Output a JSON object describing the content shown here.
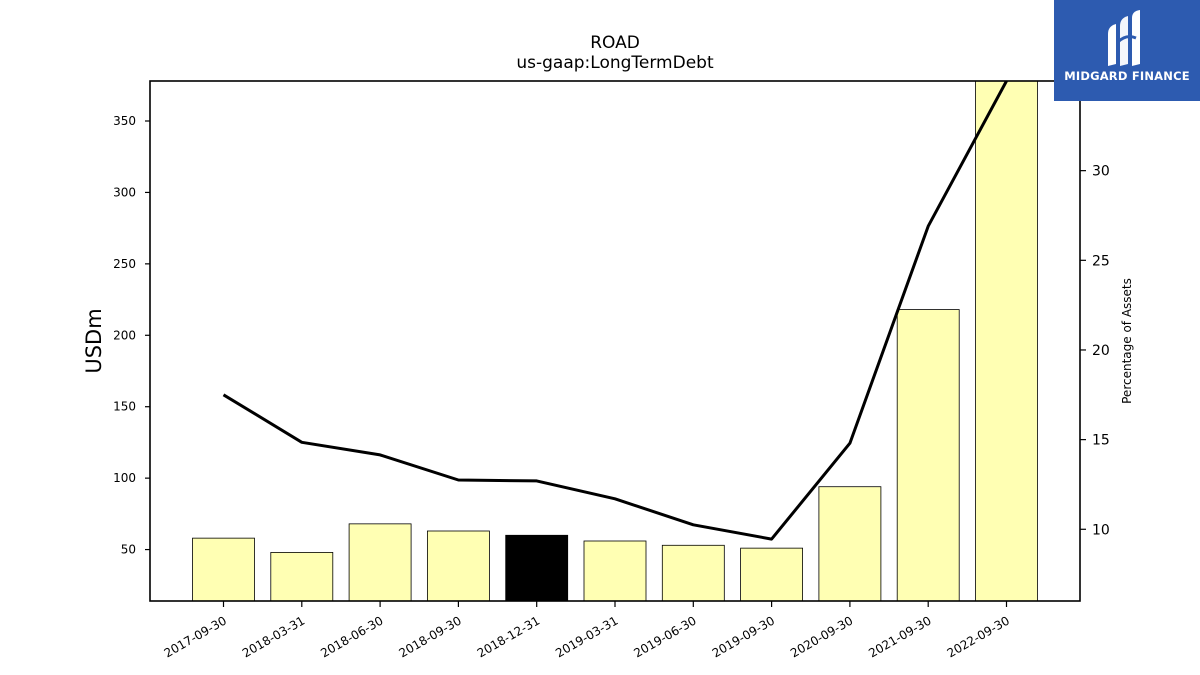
{
  "brand": {
    "name": "MIDGARD FINANCE",
    "bg_color": "#2d5bb0"
  },
  "chart_data": {
    "type": "bar",
    "title": "ROAD",
    "subtitle": "us-gaap:LongTermDebt",
    "ylabel": "USDm",
    "y2label": "Percentage of Assets",
    "categories": [
      "2017-09-30",
      "2018-03-31",
      "2018-06-30",
      "2018-09-30",
      "2018-12-31",
      "2019-03-31",
      "2019-06-30",
      "2019-09-30",
      "2020-09-30",
      "2021-09-30",
      "2022-09-30"
    ],
    "series": [
      {
        "type": "bar",
        "values": [
          58,
          48,
          68,
          63,
          60,
          56,
          53,
          51,
          94,
          218,
          378
        ],
        "color": "#ffffb3",
        "highlight_index": 4,
        "highlight_color": "#000000"
      },
      {
        "type": "line",
        "axis": "right",
        "values": [
          17.5,
          14.85,
          14.15,
          12.75,
          12.7,
          11.7,
          10.25,
          9.45,
          14.8,
          26.9,
          35.0
        ],
        "color": "#000000"
      }
    ],
    "ylim": [
      14,
      378
    ],
    "y2lim": [
      6.0,
      35.0
    ],
    "yticks": [
      50,
      100,
      150,
      200,
      250,
      300,
      350
    ],
    "y2ticks": [
      10,
      15,
      20,
      25,
      30
    ],
    "grid": false
  }
}
